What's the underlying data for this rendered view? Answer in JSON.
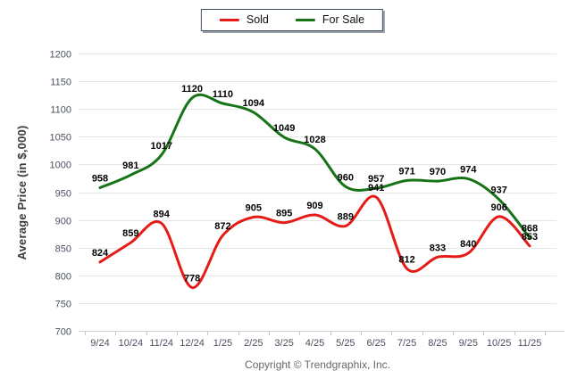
{
  "chart_data": {
    "type": "line",
    "x": [
      "9/24",
      "10/24",
      "11/24",
      "12/24",
      "1/25",
      "2/25",
      "3/25",
      "4/25",
      "5/25",
      "6/25",
      "7/25",
      "8/25",
      "9/25",
      "10/25",
      "11/25"
    ],
    "series": [
      {
        "name": "Sold",
        "color": "#e41b17",
        "values": [
          824,
          859,
          894,
          778,
          872,
          905,
          895,
          909,
          889,
          941,
          812,
          833,
          840,
          906,
          853
        ]
      },
      {
        "name": "For Sale",
        "color": "#177317",
        "values": [
          958,
          981,
          1017,
          1120,
          1110,
          1094,
          1049,
          1028,
          960,
          957,
          971,
          970,
          974,
          937,
          868
        ]
      }
    ],
    "title": "",
    "xlabel": "",
    "ylabel": "Average Price (in $,000)",
    "ylim": [
      700,
      1200
    ],
    "ytick_step": 50,
    "grid": true,
    "legend_position": "top",
    "label_color": "#000000",
    "grid_color": "#e6e6e6",
    "axis_color": "#cfcfcf",
    "tick_label_color": "#4a5160"
  },
  "footer": {
    "copyright": "Copyright © Trendgraphix, Inc."
  }
}
